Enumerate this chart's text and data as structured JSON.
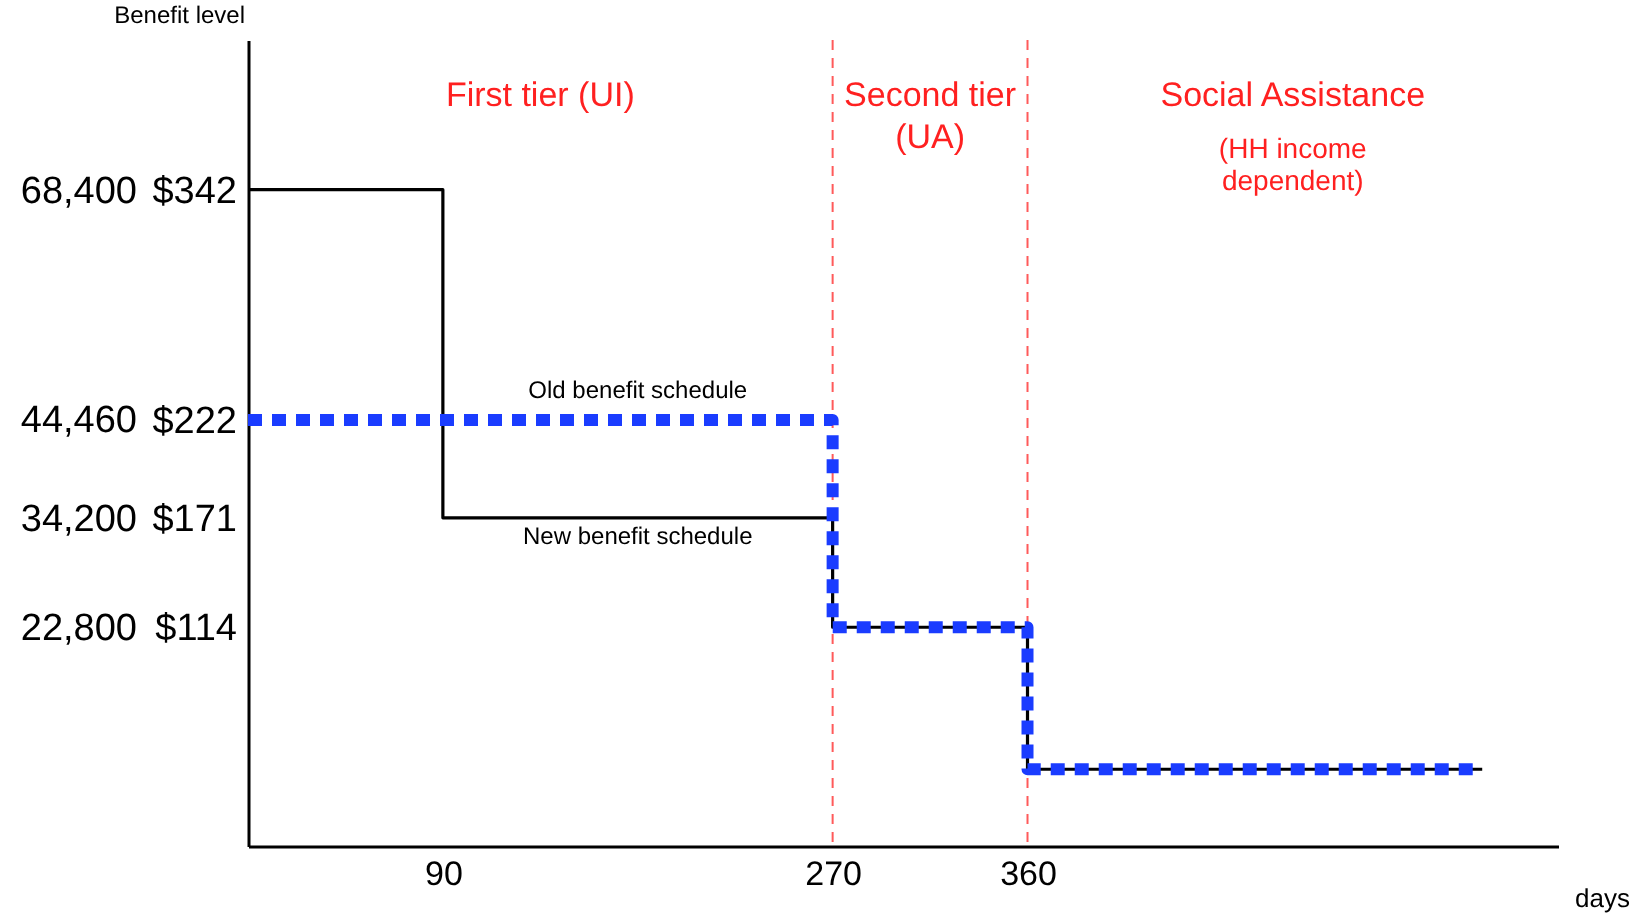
{
  "chart_data": {
    "type": "step",
    "ylabel": "Benefit level",
    "xlabel": "days",
    "xlim": [
      0,
      605
    ],
    "xticks": [
      90,
      270,
      360
    ],
    "ylim": [
      0,
      420
    ],
    "yticks": [
      {
        "value": 342,
        "label": "$342"
      },
      {
        "value": 222,
        "label": "$222"
      },
      {
        "value": 171,
        "label": "$171"
      },
      {
        "value": 114,
        "label": "$114"
      }
    ],
    "y2lim": [
      0,
      84000
    ],
    "y2ticks": [
      {
        "value": 68400,
        "label": "68,400"
      },
      {
        "value": 44460,
        "label": "44,460"
      },
      {
        "value": 34200,
        "label": "34,200"
      },
      {
        "value": 22800,
        "label": "22,800"
      }
    ],
    "series": [
      {
        "name": "New benefit schedule",
        "color": "#000000",
        "line_style": "solid",
        "x": [
          0,
          90,
          270,
          360,
          570
        ],
        "values": [
          342,
          171,
          114,
          40,
          40
        ]
      },
      {
        "name": "Old benefit schedule",
        "color": "#1a3cff",
        "line_style": "dotted",
        "x": [
          0,
          270,
          360,
          570
        ],
        "values": [
          222,
          114,
          40,
          40
        ]
      }
    ],
    "ref_lines": [
      {
        "axis": "x",
        "value": 270,
        "color": "#ff5a5a",
        "line_style": "dashed"
      },
      {
        "axis": "x",
        "value": 360,
        "color": "#ff5a5a",
        "line_style": "dashed"
      }
    ],
    "annotations": [
      "First tier (UI)",
      "Second tier\n(UA)",
      "Social Assistance",
      "(HH income\ndependent)"
    ],
    "grid": false
  }
}
